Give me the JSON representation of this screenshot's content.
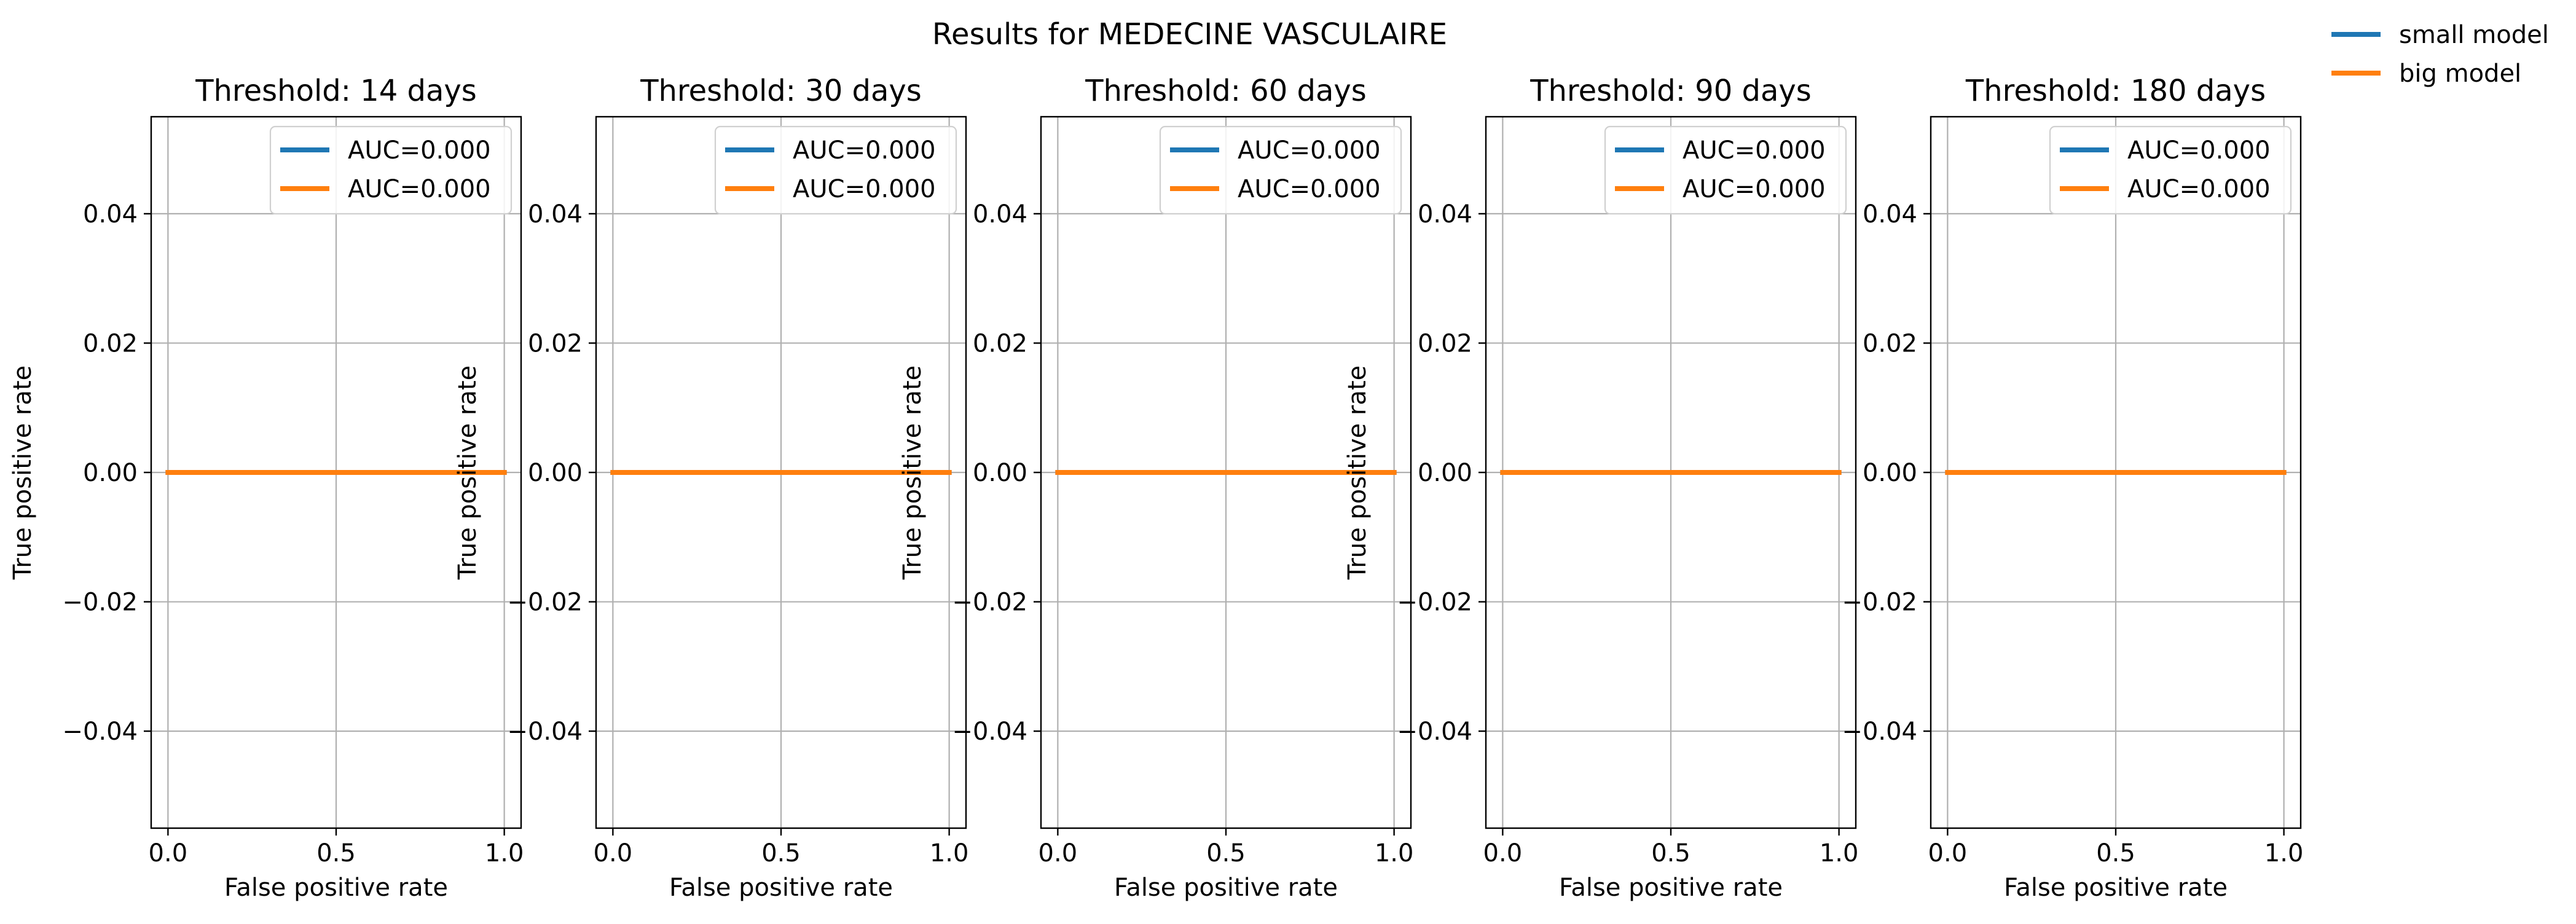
{
  "figure": {
    "suptitle": "Results for MEDECINE VASCULAIRE",
    "figure_legend": [
      {
        "label": "small model",
        "color": "#1f77b4"
      },
      {
        "label": "big model",
        "color": "#ff7f0e"
      }
    ]
  },
  "chart_data": [
    {
      "type": "line",
      "title": "Threshold: 14 days",
      "xlabel": "False positive rate",
      "ylabel": "True positive rate",
      "xlim": [
        -0.05,
        1.05
      ],
      "ylim": [
        -0.055,
        0.055
      ],
      "xticks": [
        0.0,
        0.5,
        1.0
      ],
      "xtick_labels": [
        "0.0",
        "0.5",
        "1.0"
      ],
      "yticks": [
        -0.04,
        -0.02,
        0.0,
        0.02,
        0.04
      ],
      "ytick_labels": [
        "−0.04",
        "−0.02",
        "0.00",
        "0.02",
        "0.04"
      ],
      "grid": true,
      "legend_position": "top-right",
      "series": [
        {
          "name": "AUC=0.000",
          "color": "#1f77b4",
          "x": [
            0,
            1
          ],
          "y": [
            0,
            0
          ]
        },
        {
          "name": "AUC=0.000",
          "color": "#ff7f0e",
          "x": [
            0,
            1
          ],
          "y": [
            0,
            0
          ]
        }
      ]
    },
    {
      "type": "line",
      "title": "Threshold: 30 days",
      "xlabel": "False positive rate",
      "ylabel": "True positive rate",
      "xlim": [
        -0.05,
        1.05
      ],
      "ylim": [
        -0.055,
        0.055
      ],
      "xticks": [
        0.0,
        0.5,
        1.0
      ],
      "xtick_labels": [
        "0.0",
        "0.5",
        "1.0"
      ],
      "yticks": [
        -0.04,
        -0.02,
        0.0,
        0.02,
        0.04
      ],
      "ytick_labels": [
        "−0.04",
        "−0.02",
        "0.00",
        "0.02",
        "0.04"
      ],
      "grid": true,
      "legend_position": "top-right",
      "series": [
        {
          "name": "AUC=0.000",
          "color": "#1f77b4",
          "x": [
            0,
            1
          ],
          "y": [
            0,
            0
          ]
        },
        {
          "name": "AUC=0.000",
          "color": "#ff7f0e",
          "x": [
            0,
            1
          ],
          "y": [
            0,
            0
          ]
        }
      ]
    },
    {
      "type": "line",
      "title": "Threshold: 60 days",
      "xlabel": "False positive rate",
      "ylabel": "True positive rate",
      "xlim": [
        -0.05,
        1.05
      ],
      "ylim": [
        -0.055,
        0.055
      ],
      "xticks": [
        0.0,
        0.5,
        1.0
      ],
      "xtick_labels": [
        "0.0",
        "0.5",
        "1.0"
      ],
      "yticks": [
        -0.04,
        -0.02,
        0.0,
        0.02,
        0.04
      ],
      "ytick_labels": [
        "−0.04",
        "−0.02",
        "0.00",
        "0.02",
        "0.04"
      ],
      "grid": true,
      "legend_position": "top-right",
      "series": [
        {
          "name": "AUC=0.000",
          "color": "#1f77b4",
          "x": [
            0,
            1
          ],
          "y": [
            0,
            0
          ]
        },
        {
          "name": "AUC=0.000",
          "color": "#ff7f0e",
          "x": [
            0,
            1
          ],
          "y": [
            0,
            0
          ]
        }
      ]
    },
    {
      "type": "line",
      "title": "Threshold: 90 days",
      "xlabel": "False positive rate",
      "ylabel": "True positive rate",
      "xlim": [
        -0.05,
        1.05
      ],
      "ylim": [
        -0.055,
        0.055
      ],
      "xticks": [
        0.0,
        0.5,
        1.0
      ],
      "xtick_labels": [
        "0.0",
        "0.5",
        "1.0"
      ],
      "yticks": [
        -0.04,
        -0.02,
        0.0,
        0.02,
        0.04
      ],
      "ytick_labels": [
        "−0.04",
        "−0.02",
        "0.00",
        "0.02",
        "0.04"
      ],
      "grid": true,
      "legend_position": "top-right",
      "series": [
        {
          "name": "AUC=0.000",
          "color": "#1f77b4",
          "x": [
            0,
            1
          ],
          "y": [
            0,
            0
          ]
        },
        {
          "name": "AUC=0.000",
          "color": "#ff7f0e",
          "x": [
            0,
            1
          ],
          "y": [
            0,
            0
          ]
        }
      ]
    },
    {
      "type": "line",
      "title": "Threshold: 180 days",
      "xlabel": "False positive rate",
      "ylabel": "",
      "xlim": [
        -0.05,
        1.05
      ],
      "ylim": [
        -0.055,
        0.055
      ],
      "xticks": [
        0.0,
        0.5,
        1.0
      ],
      "xtick_labels": [
        "0.0",
        "0.5",
        "1.0"
      ],
      "yticks": [
        -0.04,
        -0.02,
        0.0,
        0.02,
        0.04
      ],
      "ytick_labels": [
        "−0.04",
        "−0.02",
        "0.00",
        "0.02",
        "0.04"
      ],
      "grid": true,
      "legend_position": "top-right",
      "series": [
        {
          "name": "AUC=0.000",
          "color": "#1f77b4",
          "x": [
            0,
            1
          ],
          "y": [
            0,
            0
          ]
        },
        {
          "name": "AUC=0.000",
          "color": "#ff7f0e",
          "x": [
            0,
            1
          ],
          "y": [
            0,
            0
          ]
        }
      ]
    }
  ]
}
